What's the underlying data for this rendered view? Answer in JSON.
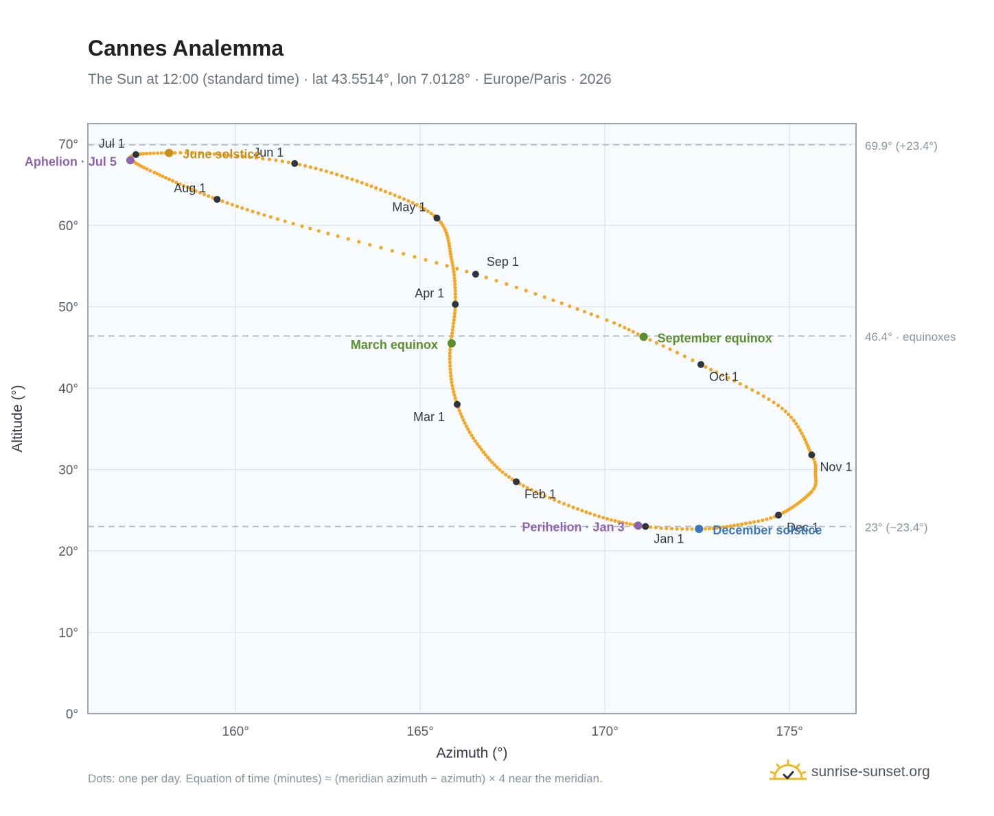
{
  "title": "Cannes Analemma",
  "subtitle": "The Sun at 12:00 (standard time) · lat 43.5514°, lon 7.0128° · Europe/Paris · 2026",
  "footnote": "Dots: one per day. Equation of time (minutes) ≈ (meridian azimuth − azimuth) × 4 near the meridian.",
  "brand": {
    "name": "sunrise-sunset.org",
    "icon": "sun-logo-icon"
  },
  "colors": {
    "curve": "#f5a623",
    "month_marker": "#2d3340",
    "june_solstice": "#c8901a",
    "december_solstice": "#3a78bd",
    "equinox": "#5a8f2e",
    "apsis": "#8e63b0",
    "plot_bg": "#f8fbfd",
    "grid": "#e3e8ee",
    "ref_line": "#b3bcc6"
  },
  "chart_data": {
    "type": "scatter",
    "xlabel": "Azimuth (°)",
    "ylabel": "Altitude (°)",
    "xlim": [
      156,
      176.8
    ],
    "ylim": [
      0,
      72.5
    ],
    "x_ticks": [
      160,
      165,
      170,
      175
    ],
    "x_tick_labels": [
      "160°",
      "165°",
      "170°",
      "175°"
    ],
    "y_ticks": [
      0,
      10,
      20,
      30,
      40,
      50,
      60,
      70
    ],
    "y_tick_labels": [
      "0°",
      "10°",
      "20°",
      "30°",
      "40°",
      "50°",
      "60°",
      "70°"
    ],
    "grid": true,
    "reference_lines": [
      {
        "y": 69.9,
        "label": "69.9° (+23.4°)"
      },
      {
        "y": 46.4,
        "label": "46.4° · equinoxes"
      },
      {
        "y": 23.0,
        "label": "23° (−23.4°)"
      }
    ],
    "curve_anchors": [
      {
        "day": 1,
        "az": 171.1,
        "alt": 23.0
      },
      {
        "day": 15,
        "az": 169.6,
        "alt": 24.6
      },
      {
        "day": 32,
        "az": 167.6,
        "alt": 28.5
      },
      {
        "day": 46,
        "az": 166.6,
        "alt": 32.8
      },
      {
        "day": 60,
        "az": 166.0,
        "alt": 38.0
      },
      {
        "day": 74,
        "az": 165.8,
        "alt": 43.6
      },
      {
        "day": 91,
        "az": 165.95,
        "alt": 50.3
      },
      {
        "day": 105,
        "az": 165.85,
        "alt": 55.8
      },
      {
        "day": 121,
        "az": 165.45,
        "alt": 60.9
      },
      {
        "day": 136,
        "az": 163.8,
        "alt": 64.6
      },
      {
        "day": 152,
        "az": 161.6,
        "alt": 67.6
      },
      {
        "day": 166,
        "az": 159.3,
        "alt": 68.8
      },
      {
        "day": 172,
        "az": 158.2,
        "alt": 68.9
      },
      {
        "day": 182,
        "az": 157.3,
        "alt": 68.7
      },
      {
        "day": 186,
        "az": 157.2,
        "alt": 68.0
      },
      {
        "day": 196,
        "az": 157.8,
        "alt": 66.5
      },
      {
        "day": 213,
        "az": 159.5,
        "alt": 63.2
      },
      {
        "day": 227,
        "az": 161.8,
        "alt": 59.9
      },
      {
        "day": 244,
        "az": 166.5,
        "alt": 54.0
      },
      {
        "day": 258,
        "az": 169.8,
        "alt": 48.8
      },
      {
        "day": 266,
        "az": 171.05,
        "alt": 46.3
      },
      {
        "day": 274,
        "az": 172.6,
        "alt": 42.9
      },
      {
        "day": 289,
        "az": 174.8,
        "alt": 37.5
      },
      {
        "day": 305,
        "az": 175.6,
        "alt": 31.8
      },
      {
        "day": 312,
        "az": 175.7,
        "alt": 29.5
      },
      {
        "day": 319,
        "az": 175.6,
        "alt": 27.3
      },
      {
        "day": 335,
        "az": 174.7,
        "alt": 24.4
      },
      {
        "day": 345,
        "az": 173.6,
        "alt": 23.2
      },
      {
        "day": 355,
        "az": 172.6,
        "alt": 22.7
      },
      {
        "day": 366,
        "az": 171.1,
        "alt": 23.0
      }
    ],
    "month_markers": [
      {
        "label": "Jan 1",
        "az": 171.1,
        "alt": 23.0,
        "pos": "below-right"
      },
      {
        "label": "Feb 1",
        "az": 167.6,
        "alt": 28.5,
        "pos": "below-right"
      },
      {
        "label": "Mar 1",
        "az": 166.0,
        "alt": 38.0,
        "pos": "below-left"
      },
      {
        "label": "Apr 1",
        "az": 165.95,
        "alt": 50.3,
        "pos": "above-left"
      },
      {
        "label": "May 1",
        "az": 165.45,
        "alt": 60.9,
        "pos": "above-left"
      },
      {
        "label": "Jun 1",
        "az": 161.6,
        "alt": 67.6,
        "pos": "above-left"
      },
      {
        "label": "Jul 1",
        "az": 157.3,
        "alt": 68.7,
        "pos": "above-left"
      },
      {
        "label": "Aug 1",
        "az": 159.5,
        "alt": 63.2,
        "pos": "above-left"
      },
      {
        "label": "Sep 1",
        "az": 166.5,
        "alt": 54.0,
        "pos": "above-right"
      },
      {
        "label": "Oct 1",
        "az": 172.6,
        "alt": 42.9,
        "pos": "below-right"
      },
      {
        "label": "Nov 1",
        "az": 175.6,
        "alt": 31.8,
        "pos": "below-right"
      },
      {
        "label": "Dec 1",
        "az": 174.7,
        "alt": 24.4,
        "pos": "below-right"
      }
    ],
    "events": [
      {
        "label": "June solstice",
        "az": 158.2,
        "alt": 68.9,
        "color": "#c8901a",
        "side": "right"
      },
      {
        "label": "December solstice",
        "az": 172.55,
        "alt": 22.7,
        "color": "#3a78bd",
        "side": "right"
      },
      {
        "label": "March equinox",
        "az": 165.85,
        "alt": 45.5,
        "color": "#5a8f2e",
        "side": "left"
      },
      {
        "label": "September equinox",
        "az": 171.05,
        "alt": 46.3,
        "color": "#5a8f2e",
        "side": "right"
      },
      {
        "label": "Aphelion · Jul 5",
        "az": 157.15,
        "alt": 68.0,
        "color": "#8e63b0",
        "side": "left"
      },
      {
        "label": "Perihelion · Jan 3",
        "az": 170.9,
        "alt": 23.1,
        "color": "#8e63b0",
        "side": "left"
      }
    ]
  }
}
